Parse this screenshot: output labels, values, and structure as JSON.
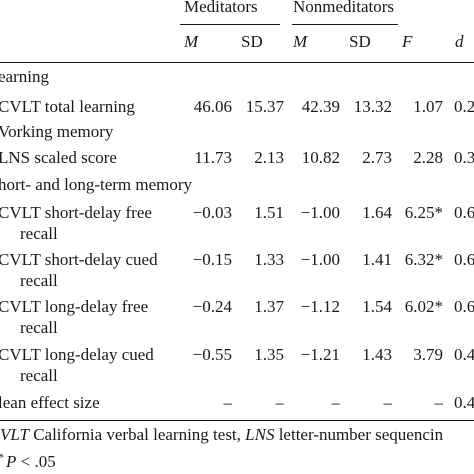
{
  "header": {
    "group1": "Meditators",
    "group2": "Nonmeditators",
    "col_m1": "M",
    "col_sd1": "SD",
    "col_m2": "M",
    "col_sd2": "SD",
    "col_f": "F",
    "col_d": "d"
  },
  "rows": [
    {
      "type": "section",
      "label": "earning"
    },
    {
      "type": "data",
      "label": "CVLT total learning",
      "label2": "",
      "m1": "46.06",
      "sd1": "15.37",
      "m2": "42.39",
      "sd2": "13.32",
      "f": "1.07",
      "d": "0.2"
    },
    {
      "type": "section",
      "label": "Vorking memory"
    },
    {
      "type": "data",
      "label": "LNS scaled score",
      "label2": "",
      "m1": "11.73",
      "sd1": "2.13",
      "m2": "10.82",
      "sd2": "2.73",
      "f": "2.28",
      "d": "0.3"
    },
    {
      "type": "section",
      "label": "hort- and long-term memory"
    },
    {
      "type": "data",
      "label": "CVLT short-delay free",
      "label2": "recall",
      "m1": "−0.03",
      "sd1": "1.51",
      "m2": "−1.00",
      "sd2": "1.64",
      "f": "6.25*",
      "d": "0.6"
    },
    {
      "type": "data",
      "label": "CVLT short-delay cued",
      "label2": "recall",
      "m1": "−0.15",
      "sd1": "1.33",
      "m2": "−1.00",
      "sd2": "1.41",
      "f": "6.32*",
      "d": "0.6"
    },
    {
      "type": "data",
      "label": "CVLT long-delay free",
      "label2": "recall",
      "m1": "−0.24",
      "sd1": "1.37",
      "m2": "−1.12",
      "sd2": "1.54",
      "f": "6.02*",
      "d": "0.6"
    },
    {
      "type": "data",
      "label": "CVLT long-delay cued",
      "label2": "recall",
      "m1": "−0.55",
      "sd1": "1.35",
      "m2": "−1.21",
      "sd2": "1.43",
      "f": "3.79",
      "d": "0.4"
    },
    {
      "type": "data",
      "label": "lean effect size",
      "label2": "",
      "m1": "–",
      "sd1": "–",
      "m2": "–",
      "sd2": "–",
      "f": "–",
      "d": "0.4"
    }
  ],
  "footnote": {
    "line1_a": "VLT",
    "line1_b": " California verbal learning test, ",
    "line1_c": "LNS",
    "line1_d": " letter-number sequencin",
    "line2_a": "P",
    "line2_b": " < .05"
  }
}
